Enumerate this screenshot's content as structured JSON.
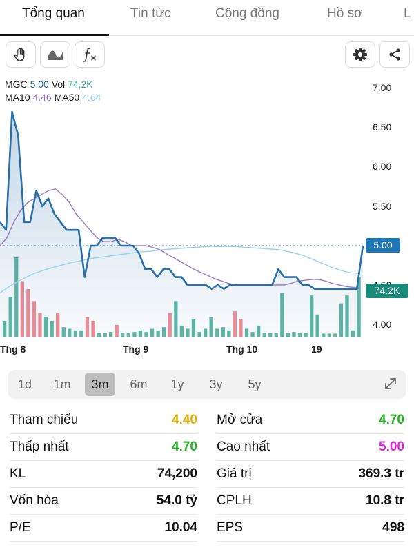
{
  "tabs": [
    {
      "label": "Tổng quan",
      "active": true
    },
    {
      "label": "Tin tức",
      "active": false
    },
    {
      "label": "Cộng đồng",
      "active": false
    },
    {
      "label": "Hồ sơ",
      "active": false
    },
    {
      "label": "L",
      "active": false
    }
  ],
  "toolbar": {
    "left_icons": [
      "hand-icon",
      "wave-icon",
      "function-icon"
    ],
    "right_icons": [
      "gear-icon",
      "share-icon"
    ]
  },
  "legend": {
    "ticker": "MGC",
    "price": "5.00",
    "vol_label": "Vol",
    "vol_value": "74,2K",
    "ma10_label": "MA10",
    "ma10_value": "4.46",
    "ma50_label": "MA50",
    "ma50_value": "4.64"
  },
  "colors": {
    "price_line": "#2a6fa8",
    "ma10": "#9b7ec8",
    "ma50": "#9fd3ee",
    "vol_up": "#5fb7a4",
    "vol_down": "#ef8e96",
    "green": "#23b521",
    "yellow": "#e5b100",
    "magenta": "#e020e0"
  },
  "chart_data": {
    "type": "line",
    "y_axis_ticks": [
      "7.00",
      "6.50",
      "6.00",
      "5.50",
      "5.00",
      "4.50",
      "4.00"
    ],
    "x_axis_labels": [
      "Thg 8",
      "Thg 9",
      "Thg 10",
      "19"
    ],
    "ylim": [
      3.9,
      7.0
    ],
    "last_price_label": "5.00",
    "last_volume_label": "74.2K",
    "series": [
      {
        "name": "MGC",
        "values": [
          5.3,
          5.2,
          6.7,
          6.4,
          5.3,
          5.3,
          5.7,
          5.5,
          5.6,
          5.4,
          5.3,
          5.2,
          5.2,
          5.2,
          4.6,
          5.0,
          5.0,
          5.1,
          5.1,
          5.1,
          5.0,
          5.0,
          5.0,
          4.9,
          4.7,
          4.7,
          4.6,
          4.7,
          4.7,
          4.6,
          4.6,
          4.5,
          4.5,
          4.5,
          4.5,
          4.45,
          4.5,
          4.45,
          4.5,
          4.5,
          4.5,
          4.5,
          4.5,
          4.5,
          4.5,
          4.5,
          4.7,
          4.6,
          4.6,
          4.6,
          4.5,
          4.5,
          4.45,
          4.45,
          4.45,
          4.45,
          4.45,
          4.45,
          4.45,
          4.45,
          5.0
        ]
      },
      {
        "name": "MA10",
        "values": [
          5.0,
          5.1,
          5.3,
          5.45,
          5.55,
          5.6,
          5.65,
          5.7,
          5.72,
          5.65,
          5.55,
          5.4,
          5.3,
          5.2,
          5.1,
          5.05,
          5.05,
          5.08,
          5.05,
          5.0,
          5.0,
          5.0,
          4.98,
          4.95,
          4.9,
          4.85,
          4.8,
          4.75,
          4.7,
          4.66,
          4.62,
          4.58,
          4.55,
          4.52,
          4.5,
          4.5,
          4.5,
          4.5,
          4.5,
          4.5,
          4.5,
          4.5,
          4.52,
          4.55,
          4.56,
          4.57,
          4.57,
          4.55,
          4.52,
          4.5,
          4.48,
          4.47,
          4.46
        ]
      },
      {
        "name": "MA50",
        "values": [
          4.4,
          4.5,
          4.58,
          4.65,
          4.7,
          4.74,
          4.78,
          4.81,
          4.84,
          4.86,
          4.88,
          4.9,
          4.92,
          4.93,
          4.95,
          4.96,
          4.97,
          4.98,
          4.99,
          4.99,
          4.99,
          4.98,
          4.97,
          4.96,
          4.95,
          4.92,
          4.88,
          4.82,
          4.76,
          4.7,
          4.66,
          4.64
        ]
      }
    ],
    "volume": [
      {
        "v": 0.2,
        "c": "up"
      },
      {
        "v": 0.5,
        "c": "up"
      },
      {
        "v": 1.0,
        "c": "up"
      },
      {
        "v": 0.7,
        "c": "down"
      },
      {
        "v": 0.6,
        "c": "down"
      },
      {
        "v": 0.45,
        "c": "down"
      },
      {
        "v": 0.3,
        "c": "down"
      },
      {
        "v": 0.25,
        "c": "up"
      },
      {
        "v": 0.2,
        "c": "up"
      },
      {
        "v": 0.3,
        "c": "down"
      },
      {
        "v": 0.12,
        "c": "up"
      },
      {
        "v": 0.1,
        "c": "up"
      },
      {
        "v": 0.08,
        "c": "up"
      },
      {
        "v": 0.08,
        "c": "up"
      },
      {
        "v": 0.25,
        "c": "down"
      },
      {
        "v": 0.2,
        "c": "down"
      },
      {
        "v": 0.05,
        "c": "up"
      },
      {
        "v": 0.05,
        "c": "up"
      },
      {
        "v": 0.06,
        "c": "up"
      },
      {
        "v": 0.15,
        "c": "down"
      },
      {
        "v": 0.05,
        "c": "up"
      },
      {
        "v": 0.05,
        "c": "up"
      },
      {
        "v": 0.06,
        "c": "up"
      },
      {
        "v": 0.08,
        "c": "up"
      },
      {
        "v": 0.06,
        "c": "up"
      },
      {
        "v": 0.1,
        "c": "up"
      },
      {
        "v": 0.08,
        "c": "up"
      },
      {
        "v": 0.12,
        "c": "up"
      },
      {
        "v": 0.3,
        "c": "down"
      },
      {
        "v": 0.45,
        "c": "up"
      },
      {
        "v": 0.14,
        "c": "up"
      },
      {
        "v": 0.1,
        "c": "up"
      },
      {
        "v": 0.22,
        "c": "up"
      },
      {
        "v": 0.06,
        "c": "up"
      },
      {
        "v": 0.1,
        "c": "up"
      },
      {
        "v": 0.25,
        "c": "up"
      },
      {
        "v": 0.1,
        "c": "up"
      },
      {
        "v": 0.12,
        "c": "up"
      },
      {
        "v": 0.08,
        "c": "up"
      },
      {
        "v": 0.32,
        "c": "down"
      },
      {
        "v": 0.22,
        "c": "down"
      },
      {
        "v": 0.1,
        "c": "up"
      },
      {
        "v": 0.06,
        "c": "up"
      },
      {
        "v": 0.14,
        "c": "up"
      },
      {
        "v": 0.05,
        "c": "up"
      },
      {
        "v": 0.05,
        "c": "up"
      },
      {
        "v": 0.05,
        "c": "up"
      },
      {
        "v": 0.55,
        "c": "up"
      },
      {
        "v": 0.05,
        "c": "up"
      },
      {
        "v": 0.06,
        "c": "up"
      },
      {
        "v": 0.05,
        "c": "up"
      },
      {
        "v": 0.05,
        "c": "up"
      },
      {
        "v": 0.52,
        "c": "up"
      },
      {
        "v": 0.28,
        "c": "up"
      },
      {
        "v": 0.04,
        "c": "up"
      },
      {
        "v": 0.04,
        "c": "up"
      },
      {
        "v": 0.04,
        "c": "up"
      },
      {
        "v": 0.42,
        "c": "up"
      },
      {
        "v": 0.52,
        "c": "up"
      },
      {
        "v": 0.08,
        "c": "up"
      },
      {
        "v": 0.75,
        "c": "up"
      }
    ]
  },
  "range_selector": {
    "options": [
      "1d",
      "1m",
      "3m",
      "6m",
      "1y",
      "3y",
      "5y"
    ],
    "active": "3m",
    "expand_icon": "expand-icon"
  },
  "stats": {
    "ref_label": "Tham chiếu",
    "ref_value": "4.40",
    "open_label": "Mở cửa",
    "open_value": "4.70",
    "low_label": "Thấp nhất",
    "low_value": "4.70",
    "high_label": "Cao nhất",
    "high_value": "5.00",
    "vol_label": "KL",
    "vol_value": "74,200",
    "value_label": "Giá trị",
    "value_value": "369.3 tr",
    "cap_label": "Vốn hóa",
    "cap_value": "54.0 tỷ",
    "shares_label": "CPLH",
    "shares_value": "10.8 tr",
    "pe_label": "P/E",
    "pe_value": "10.04",
    "eps_label": "EPS",
    "eps_value": "498"
  }
}
